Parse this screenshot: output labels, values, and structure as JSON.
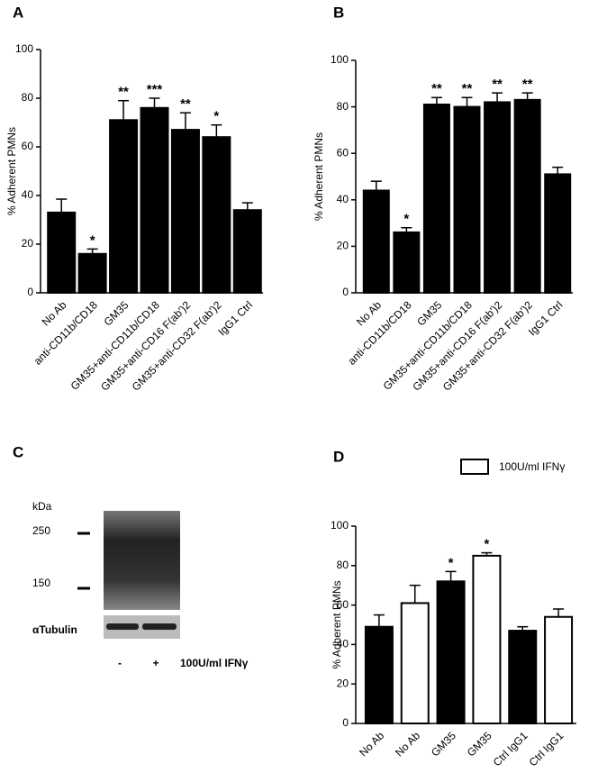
{
  "chart_data": [
    {
      "type": "bar",
      "panel": "A",
      "ylabel": "% Adherent PMNs",
      "categories": [
        "No Ab",
        "anti-CD11b/CD18",
        "GM35",
        "GM35+anti-CD11b/CD18",
        "GM35+anti-CD16 F(ab')2",
        "GM35+anti-CD32 F(ab')2",
        "IgG1 Ctrl"
      ],
      "values": [
        33,
        16,
        71,
        76,
        67,
        64,
        34
      ],
      "errors": [
        5.5,
        2,
        8,
        4,
        7,
        5,
        3
      ],
      "annotations": [
        null,
        "*",
        "**",
        "***",
        "**",
        "*",
        null
      ],
      "color": "#000000",
      "ylim": [
        0,
        100
      ],
      "yticks": [
        0,
        20,
        40,
        60,
        80,
        100
      ]
    },
    {
      "type": "bar",
      "panel": "B",
      "ylabel": "% Adherent PMNs",
      "categories": [
        "No Ab",
        "anti-CD11b/CD18",
        "GM35",
        "GM35+anti-CD11b/CD18",
        "GM35+anti-CD16 F(ab')2",
        "GM35+anti-CD32 F(ab')2",
        "IgG1 Ctrl"
      ],
      "values": [
        44,
        26,
        81,
        80,
        82,
        83,
        51
      ],
      "errors": [
        4,
        2,
        3,
        4,
        4,
        3,
        3
      ],
      "annotations": [
        null,
        "*",
        "**",
        "**",
        "**",
        "**",
        null
      ],
      "color": "#000000",
      "ylim": [
        0,
        100
      ],
      "yticks": [
        0,
        20,
        40,
        60,
        80,
        100
      ]
    },
    {
      "type": "bar",
      "panel": "D",
      "ylabel": "% Adherent PMNs",
      "categories": [
        "No Ab",
        "No Ab",
        "GM35",
        "GM35",
        "Ctrl IgG1",
        "Ctrl IgG1"
      ],
      "values": [
        49,
        61,
        72,
        85,
        47,
        54
      ],
      "errors": [
        6,
        9,
        5,
        1.5,
        2,
        4
      ],
      "annotations": [
        null,
        null,
        "*",
        "*",
        null,
        null
      ],
      "colors": [
        "#000000",
        "#ffffff",
        "#000000",
        "#ffffff",
        "#000000",
        "#ffffff"
      ],
      "legend": {
        "label": "100U/ml IFNγ",
        "color": "#ffffff"
      },
      "ylim": [
        0,
        100
      ],
      "yticks": [
        0,
        20,
        40,
        60,
        80,
        100
      ]
    }
  ],
  "panel_c": {
    "panel": "C",
    "unit": "kDa",
    "markers": [
      "250",
      "150"
    ],
    "loading_control": "αTubulin",
    "lanes": [
      "-",
      "+"
    ],
    "treatment": "100U/ml IFNγ"
  }
}
